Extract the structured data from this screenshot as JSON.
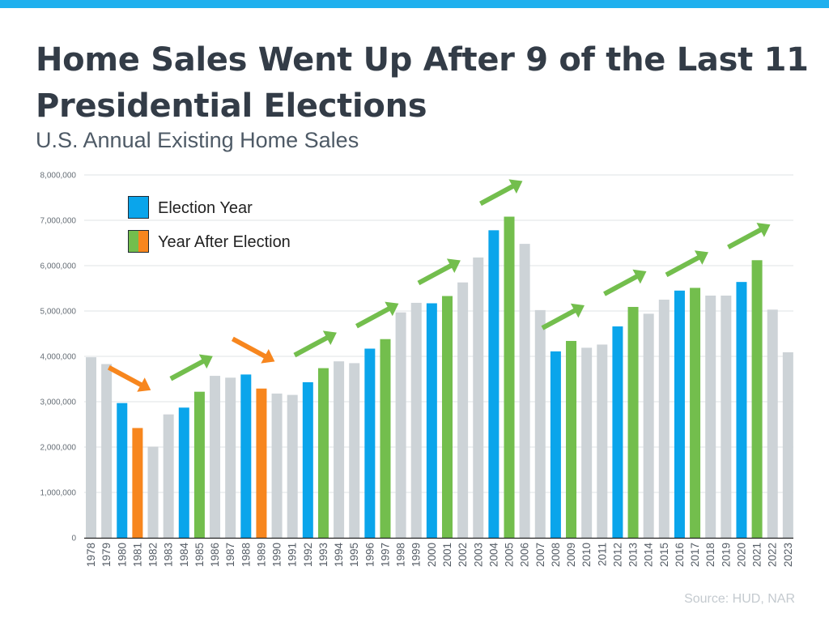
{
  "header": {
    "title": "Home Sales Went Up After 9 of the Last 11 Presidential Elections",
    "subtitle": "U.S. Annual Existing Home Sales",
    "source": "Source: HUD, NAR"
  },
  "colors": {
    "accent_bar": "#1fb0ee",
    "election_year": "#0aa5eb",
    "year_after_up": "#73be4d",
    "year_after_down": "#f7861e",
    "other_year": "#cdd3d7"
  },
  "chart_data": {
    "type": "bar",
    "title": "Home Sales Went Up After 9 of the Last 11 Presidential Elections",
    "subtitle": "U.S. Annual Existing Home Sales",
    "categories": [
      "1978",
      "1979",
      "1980",
      "1981",
      "1982",
      "1983",
      "1984",
      "1985",
      "1986",
      "1987",
      "1988",
      "1989",
      "1990",
      "1991",
      "1992",
      "1993",
      "1994",
      "1995",
      "1996",
      "1997",
      "1998",
      "1999",
      "2000",
      "2001",
      "2002",
      "2003",
      "2004",
      "2005",
      "2006",
      "2007",
      "2008",
      "2009",
      "2010",
      "2011",
      "2012",
      "2013",
      "2014",
      "2015",
      "2016",
      "2017",
      "2018",
      "2019",
      "2020",
      "2021",
      "2022",
      "2023"
    ],
    "values": [
      3980000,
      3830000,
      2970000,
      2420000,
      2010000,
      2720000,
      2870000,
      3220000,
      3570000,
      3530000,
      3600000,
      3290000,
      3180000,
      3150000,
      3430000,
      3740000,
      3890000,
      3850000,
      4170000,
      4380000,
      4970000,
      5180000,
      5170000,
      5330000,
      5630000,
      6180000,
      6780000,
      7080000,
      6480000,
      5020000,
      4110000,
      4340000,
      4190000,
      4260000,
      4660000,
      5090000,
      4940000,
      5250000,
      5450000,
      5510000,
      5340000,
      5340000,
      5640000,
      6120000,
      5030000,
      4090000
    ],
    "bar_types": [
      "other",
      "other",
      "election",
      "after_down",
      "other",
      "other",
      "election",
      "after_up",
      "other",
      "other",
      "election",
      "after_down",
      "other",
      "other",
      "election",
      "after_up",
      "other",
      "other",
      "election",
      "after_up",
      "other",
      "other",
      "election",
      "after_up",
      "other",
      "other",
      "election",
      "after_up",
      "other",
      "other",
      "election",
      "after_up",
      "other",
      "other",
      "election",
      "after_up",
      "other",
      "other",
      "election",
      "after_up",
      "other",
      "other",
      "election",
      "after_up",
      "other",
      "other"
    ],
    "ylim": [
      0,
      8000000
    ],
    "yticks": [
      0,
      1000000,
      2000000,
      3000000,
      4000000,
      5000000,
      6000000,
      7000000,
      8000000
    ],
    "ytick_labels": [
      "0",
      "1,000,000",
      "2,000,000",
      "3,000,000",
      "4,000,000",
      "5,000,000",
      "6,000,000",
      "7,000,000",
      "8,000,000"
    ],
    "grid": true,
    "legend": {
      "placement": "top-left",
      "entries": [
        {
          "label": "Election Year",
          "colors": [
            "#0aa5eb"
          ]
        },
        {
          "label": "Year After Election",
          "colors": [
            "#73be4d",
            "#f7861e"
          ]
        }
      ]
    },
    "arrows": [
      {
        "from": "1980",
        "to": "1981",
        "direction": "down",
        "color": "#f7861e"
      },
      {
        "from": "1984",
        "to": "1985",
        "direction": "up",
        "color": "#73be4d"
      },
      {
        "from": "1988",
        "to": "1989",
        "direction": "down",
        "color": "#f7861e"
      },
      {
        "from": "1992",
        "to": "1993",
        "direction": "up",
        "color": "#73be4d"
      },
      {
        "from": "1996",
        "to": "1997",
        "direction": "up",
        "color": "#73be4d"
      },
      {
        "from": "2000",
        "to": "2001",
        "direction": "up",
        "color": "#73be4d"
      },
      {
        "from": "2004",
        "to": "2005",
        "direction": "up",
        "color": "#73be4d"
      },
      {
        "from": "2008",
        "to": "2009",
        "direction": "up",
        "color": "#73be4d"
      },
      {
        "from": "2012",
        "to": "2013",
        "direction": "up",
        "color": "#73be4d"
      },
      {
        "from": "2016",
        "to": "2017",
        "direction": "up",
        "color": "#73be4d"
      },
      {
        "from": "2020",
        "to": "2021",
        "direction": "up",
        "color": "#73be4d"
      }
    ]
  }
}
